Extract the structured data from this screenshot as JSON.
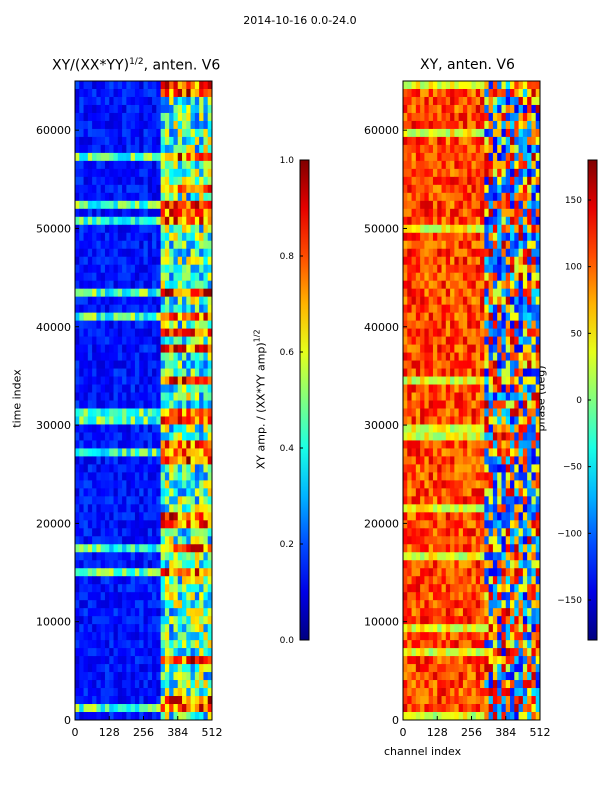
{
  "figure": {
    "suptitle": "2014-10-16 0.0-24.0"
  },
  "chart_data": [
    {
      "type": "heatmap",
      "title": "XY/(XX*YY)",
      "title_sup": "1/2",
      "title_suffix": ", anten. V6",
      "xlabel": "",
      "ylabel": "time index",
      "xticks": [
        "0",
        "128",
        "256",
        "384",
        "512"
      ],
      "yticks": [
        "0",
        "10000",
        "20000",
        "30000",
        "40000",
        "50000",
        "60000"
      ],
      "xlim": [
        0,
        512
      ],
      "ylim": [
        0,
        65000
      ],
      "colorscale": "jet",
      "colorbar": {
        "label": "XY amp. / (XX*YY amp)",
        "label_sup": "1/2",
        "range": [
          0.0,
          1.0
        ],
        "ticks": [
          "0.0",
          "0.2",
          "0.4",
          "0.6",
          "0.8",
          "1.0"
        ]
      }
    },
    {
      "type": "heatmap",
      "title": "XY, anten. V6",
      "xlabel": "channel index",
      "ylabel": "",
      "xticks": [
        "0",
        "128",
        "256",
        "384",
        "512"
      ],
      "yticks": [
        "0",
        "10000",
        "20000",
        "30000",
        "40000",
        "50000",
        "60000"
      ],
      "xlim": [
        0,
        512
      ],
      "ylim": [
        0,
        65000
      ],
      "colorscale": "jet",
      "colorbar": {
        "label": "phase (deg)",
        "range": [
          -180,
          180
        ],
        "ticks": [
          "−150",
          "−100",
          "−50",
          "0",
          "50",
          "100",
          "150"
        ]
      }
    }
  ]
}
